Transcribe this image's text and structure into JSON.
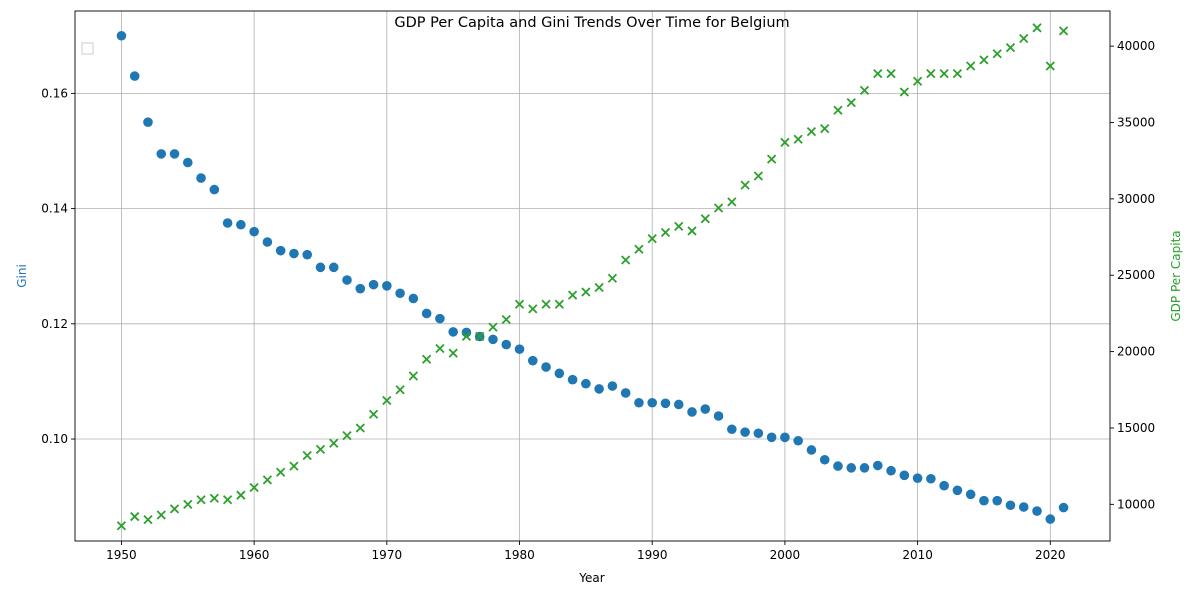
{
  "chart_data": {
    "type": "scatter",
    "title": "GDP Per Capita and Gini Trends Over Time for Belgium",
    "xlabel": "Year",
    "ylabel_left": "Gini",
    "ylabel_right": "GDP Per Capita",
    "xlim": [
      1946.5,
      2024.5
    ],
    "ylim_left": [
      0.0823,
      0.1743
    ],
    "ylim_right": [
      7600,
      42300
    ],
    "x_ticks": [
      1950,
      1960,
      1970,
      1980,
      1990,
      2000,
      2010,
      2020
    ],
    "y_left_ticks": [
      0.1,
      0.12,
      0.14,
      0.16
    ],
    "y_left_tick_labels": [
      "0.10",
      "0.12",
      "0.14",
      "0.16"
    ],
    "y_right_ticks": [
      10000,
      15000,
      20000,
      25000,
      30000,
      35000,
      40000
    ],
    "grid": true,
    "legend": "top-left (empty)",
    "colors": {
      "gini": "#1f77b4",
      "gdp": "#2ca02c"
    },
    "x": [
      1950,
      1951,
      1952,
      1953,
      1954,
      1955,
      1956,
      1957,
      1958,
      1959,
      1960,
      1961,
      1962,
      1963,
      1964,
      1965,
      1966,
      1967,
      1968,
      1969,
      1970,
      1971,
      1972,
      1973,
      1974,
      1975,
      1976,
      1977,
      1978,
      1979,
      1980,
      1981,
      1982,
      1983,
      1984,
      1985,
      1986,
      1987,
      1988,
      1989,
      1990,
      1991,
      1992,
      1993,
      1994,
      1995,
      1996,
      1997,
      1998,
      1999,
      2000,
      2001,
      2002,
      2003,
      2004,
      2005,
      2006,
      2007,
      2008,
      2009,
      2010,
      2011,
      2012,
      2013,
      2014,
      2015,
      2016,
      2017,
      2018,
      2019,
      2020,
      2021
    ],
    "series": [
      {
        "axis": "left",
        "marker": "circle",
        "values": [
          0.17,
          0.163,
          0.155,
          0.1495,
          0.1495,
          0.148,
          0.1453,
          0.1433,
          0.1375,
          0.1372,
          0.136,
          0.1342,
          0.1327,
          0.1322,
          0.132,
          0.1298,
          0.1298,
          0.1276,
          0.1261,
          0.1268,
          0.1266,
          0.1253,
          0.1244,
          0.1218,
          0.1209,
          0.1186,
          0.1185,
          0.1178,
          0.1173,
          0.1164,
          0.1156,
          0.1136,
          0.1125,
          0.1114,
          0.1103,
          0.1096,
          0.1087,
          0.1092,
          0.108,
          0.1063,
          0.1063,
          0.1062,
          0.106,
          0.1047,
          0.1052,
          0.104,
          0.1017,
          0.1012,
          0.101,
          0.1003,
          0.1003,
          0.0997,
          0.0981,
          0.0964,
          0.0953,
          0.095,
          0.095,
          0.0954,
          0.0945,
          0.0937,
          0.0932,
          0.0931,
          0.0919,
          0.0911,
          0.0904,
          0.0893,
          0.0893,
          0.0885,
          0.0882,
          0.0875,
          0.0861,
          0.0881
        ]
      },
      {
        "axis": "right",
        "marker": "x",
        "values": [
          8600,
          9200,
          9000,
          9300,
          9700,
          10000,
          10300,
          10400,
          10300,
          10600,
          11100,
          11600,
          12100,
          12500,
          13200,
          13600,
          14000,
          14500,
          15000,
          15900,
          16800,
          17500,
          18400,
          19500,
          20200,
          19900,
          21000,
          21000,
          21600,
          22100,
          23100,
          22800,
          23100,
          23100,
          23700,
          23900,
          24200,
          24800,
          26000,
          26700,
          27400,
          27800,
          28200,
          27900,
          28700,
          29400,
          29800,
          30900,
          31500,
          32600,
          33700,
          33900,
          34400,
          34600,
          35800,
          36300,
          37100,
          38200,
          38200,
          37000,
          37700,
          38200,
          38200,
          38200,
          38700,
          39100,
          39500,
          39900,
          40500,
          41200,
          38700,
          41000
        ]
      }
    ]
  }
}
